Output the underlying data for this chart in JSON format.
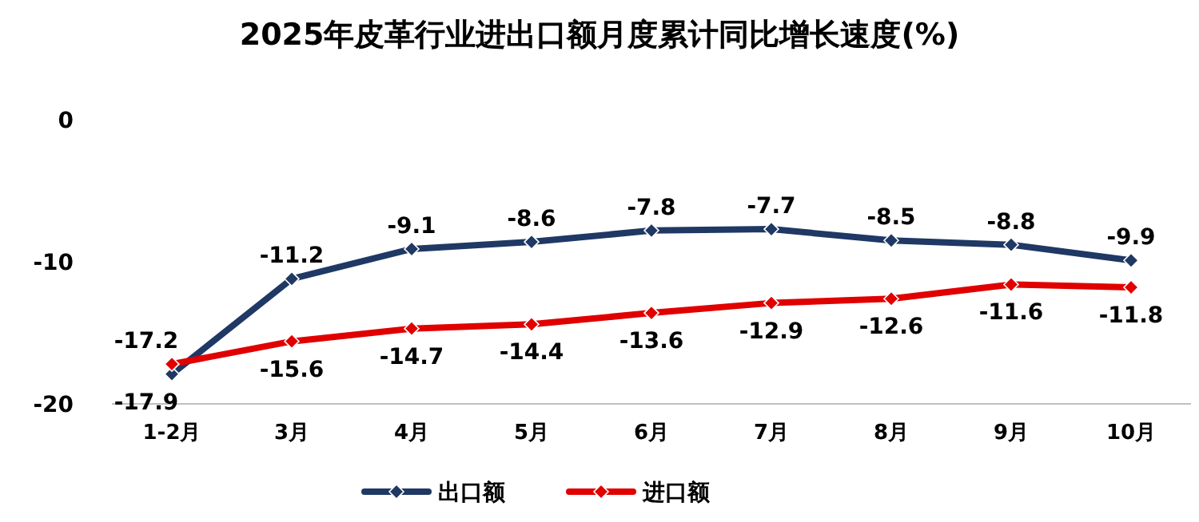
{
  "chart_data": {
    "type": "line",
    "title": "2025年皮革行业进出口额月度累计同比增长速度(%)",
    "categories": [
      "1-2月",
      "3月",
      "4月",
      "5月",
      "6月",
      "7月",
      "8月",
      "9月",
      "10月"
    ],
    "series": [
      {
        "name": "出口额",
        "color": "#1f3864",
        "values": [
          -17.9,
          -11.2,
          -9.1,
          -8.6,
          -7.8,
          -7.7,
          -8.5,
          -8.8,
          -9.9
        ]
      },
      {
        "name": "进口额",
        "color": "#e00000",
        "values": [
          -17.2,
          -15.6,
          -14.7,
          -14.4,
          -13.6,
          -12.9,
          -12.6,
          -11.6,
          -11.8
        ]
      }
    ],
    "ylim": [
      -20,
      0
    ],
    "yticks": [
      0,
      -10,
      -20
    ],
    "grid": false,
    "legend": "bottom",
    "marker": "diamond",
    "line_style": "solid",
    "data_labels": true
  }
}
